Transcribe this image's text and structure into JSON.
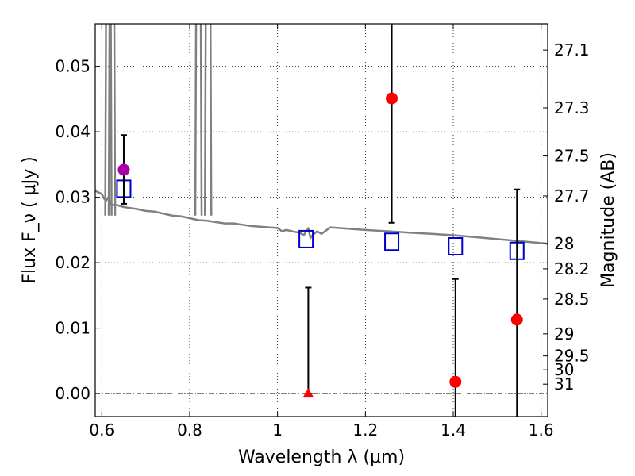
{
  "chart_data": {
    "type": "scatter",
    "xlabel": "Wavelength  λ (μm)",
    "ylabel_left": "Flux  F_ν  ( μJy )",
    "ylabel_right": "Magnitude (AB)",
    "xlim": [
      0.585,
      1.615
    ],
    "ylim": [
      -0.0035,
      0.0565
    ],
    "x_ticks": [
      {
        "value": 0.6,
        "label": "0.6"
      },
      {
        "value": 0.8,
        "label": "0.8"
      },
      {
        "value": 1.0,
        "label": "1"
      },
      {
        "value": 1.2,
        "label": "1.2"
      },
      {
        "value": 1.4,
        "label": "1.4"
      },
      {
        "value": 1.6,
        "label": "1.6"
      }
    ],
    "y_ticks": [
      {
        "value": 0.0,
        "label": "0.00"
      },
      {
        "value": 0.01,
        "label": "0.01"
      },
      {
        "value": 0.02,
        "label": "0.02"
      },
      {
        "value": 0.03,
        "label": "0.03"
      },
      {
        "value": 0.04,
        "label": "0.04"
      },
      {
        "value": 0.05,
        "label": "0.05"
      }
    ],
    "mag_ticks": [
      {
        "value": 27.1,
        "label": "27.1"
      },
      {
        "value": 27.3,
        "label": "27.3"
      },
      {
        "value": 27.5,
        "label": "27.5"
      },
      {
        "value": 27.7,
        "label": "27.7"
      },
      {
        "value": 28.0,
        "label": "28"
      },
      {
        "value": 28.2,
        "label": "28.2"
      },
      {
        "value": 28.5,
        "label": "28.5"
      },
      {
        "value": 29.0,
        "label": "29"
      },
      {
        "value": 29.5,
        "label": "29.5"
      },
      {
        "value": 30.0,
        "label": "30"
      },
      {
        "value": 31.0,
        "label": "31"
      }
    ],
    "grid": true,
    "zero_line": true,
    "colors": {
      "model": "#808080",
      "model_photometry": "#0000cc",
      "observed": "#ff0000",
      "highlight": "#aa00aa",
      "errorbar": "#000000"
    },
    "model_spectrum": {
      "x": [
        0.585,
        0.6,
        0.605,
        0.61,
        0.615,
        0.62,
        0.625,
        0.63,
        0.64,
        0.65,
        0.66,
        0.68,
        0.7,
        0.72,
        0.74,
        0.76,
        0.78,
        0.8,
        0.82,
        0.84,
        0.86,
        0.88,
        0.9,
        0.92,
        0.94,
        0.96,
        0.98,
        1.0,
        1.01,
        1.02,
        1.04,
        1.05,
        1.06,
        1.065,
        1.07,
        1.075,
        1.08,
        1.09,
        1.1,
        1.12,
        1.14,
        1.16,
        1.2,
        1.25,
        1.3,
        1.35,
        1.4,
        1.45,
        1.5,
        1.55,
        1.6,
        1.615
      ],
      "y": [
        0.031,
        0.0305,
        0.0298,
        0.0295,
        0.03,
        0.029,
        0.0288,
        0.0289,
        0.0287,
        0.0285,
        0.0284,
        0.0282,
        0.0279,
        0.0278,
        0.0275,
        0.0272,
        0.0271,
        0.0268,
        0.0265,
        0.0264,
        0.0262,
        0.026,
        0.026,
        0.0258,
        0.0256,
        0.0255,
        0.0254,
        0.0253,
        0.0248,
        0.025,
        0.0247,
        0.0246,
        0.0242,
        0.0248,
        0.0252,
        0.0238,
        0.0242,
        0.0248,
        0.0244,
        0.0254,
        0.0253,
        0.0252,
        0.025,
        0.0248,
        0.0246,
        0.0244,
        0.0242,
        0.0239,
        0.0236,
        0.0233,
        0.023,
        0.0229
      ],
      "emission_lines": [
        0.615,
        0.623,
        0.82,
        0.842
      ]
    },
    "model_photometry": {
      "x": [
        0.65,
        1.065,
        1.26,
        1.405,
        1.545
      ],
      "y": [
        0.0313,
        0.0236,
        0.0232,
        0.0225,
        0.0218
      ]
    },
    "observed": [
      {
        "x": 0.65,
        "y": 0.0342,
        "yerr_low": 0.029,
        "yerr_high": 0.0395,
        "marker": "circle",
        "color": "highlight"
      },
      {
        "x": 1.07,
        "y": 0.0,
        "yerr_low": 0.0,
        "yerr_high": 0.0162,
        "marker": "triangle",
        "color": "observed"
      },
      {
        "x": 1.26,
        "y": 0.0451,
        "yerr_low": 0.0261,
        "yerr_high": 0.0565,
        "marker": "circle",
        "color": "observed"
      },
      {
        "x": 1.405,
        "y": 0.0018,
        "yerr_low": -0.0035,
        "yerr_high": 0.0175,
        "marker": "circle",
        "color": "observed"
      },
      {
        "x": 1.545,
        "y": 0.0113,
        "yerr_low": -0.0035,
        "yerr_high": 0.0312,
        "marker": "circle",
        "color": "observed"
      }
    ]
  }
}
